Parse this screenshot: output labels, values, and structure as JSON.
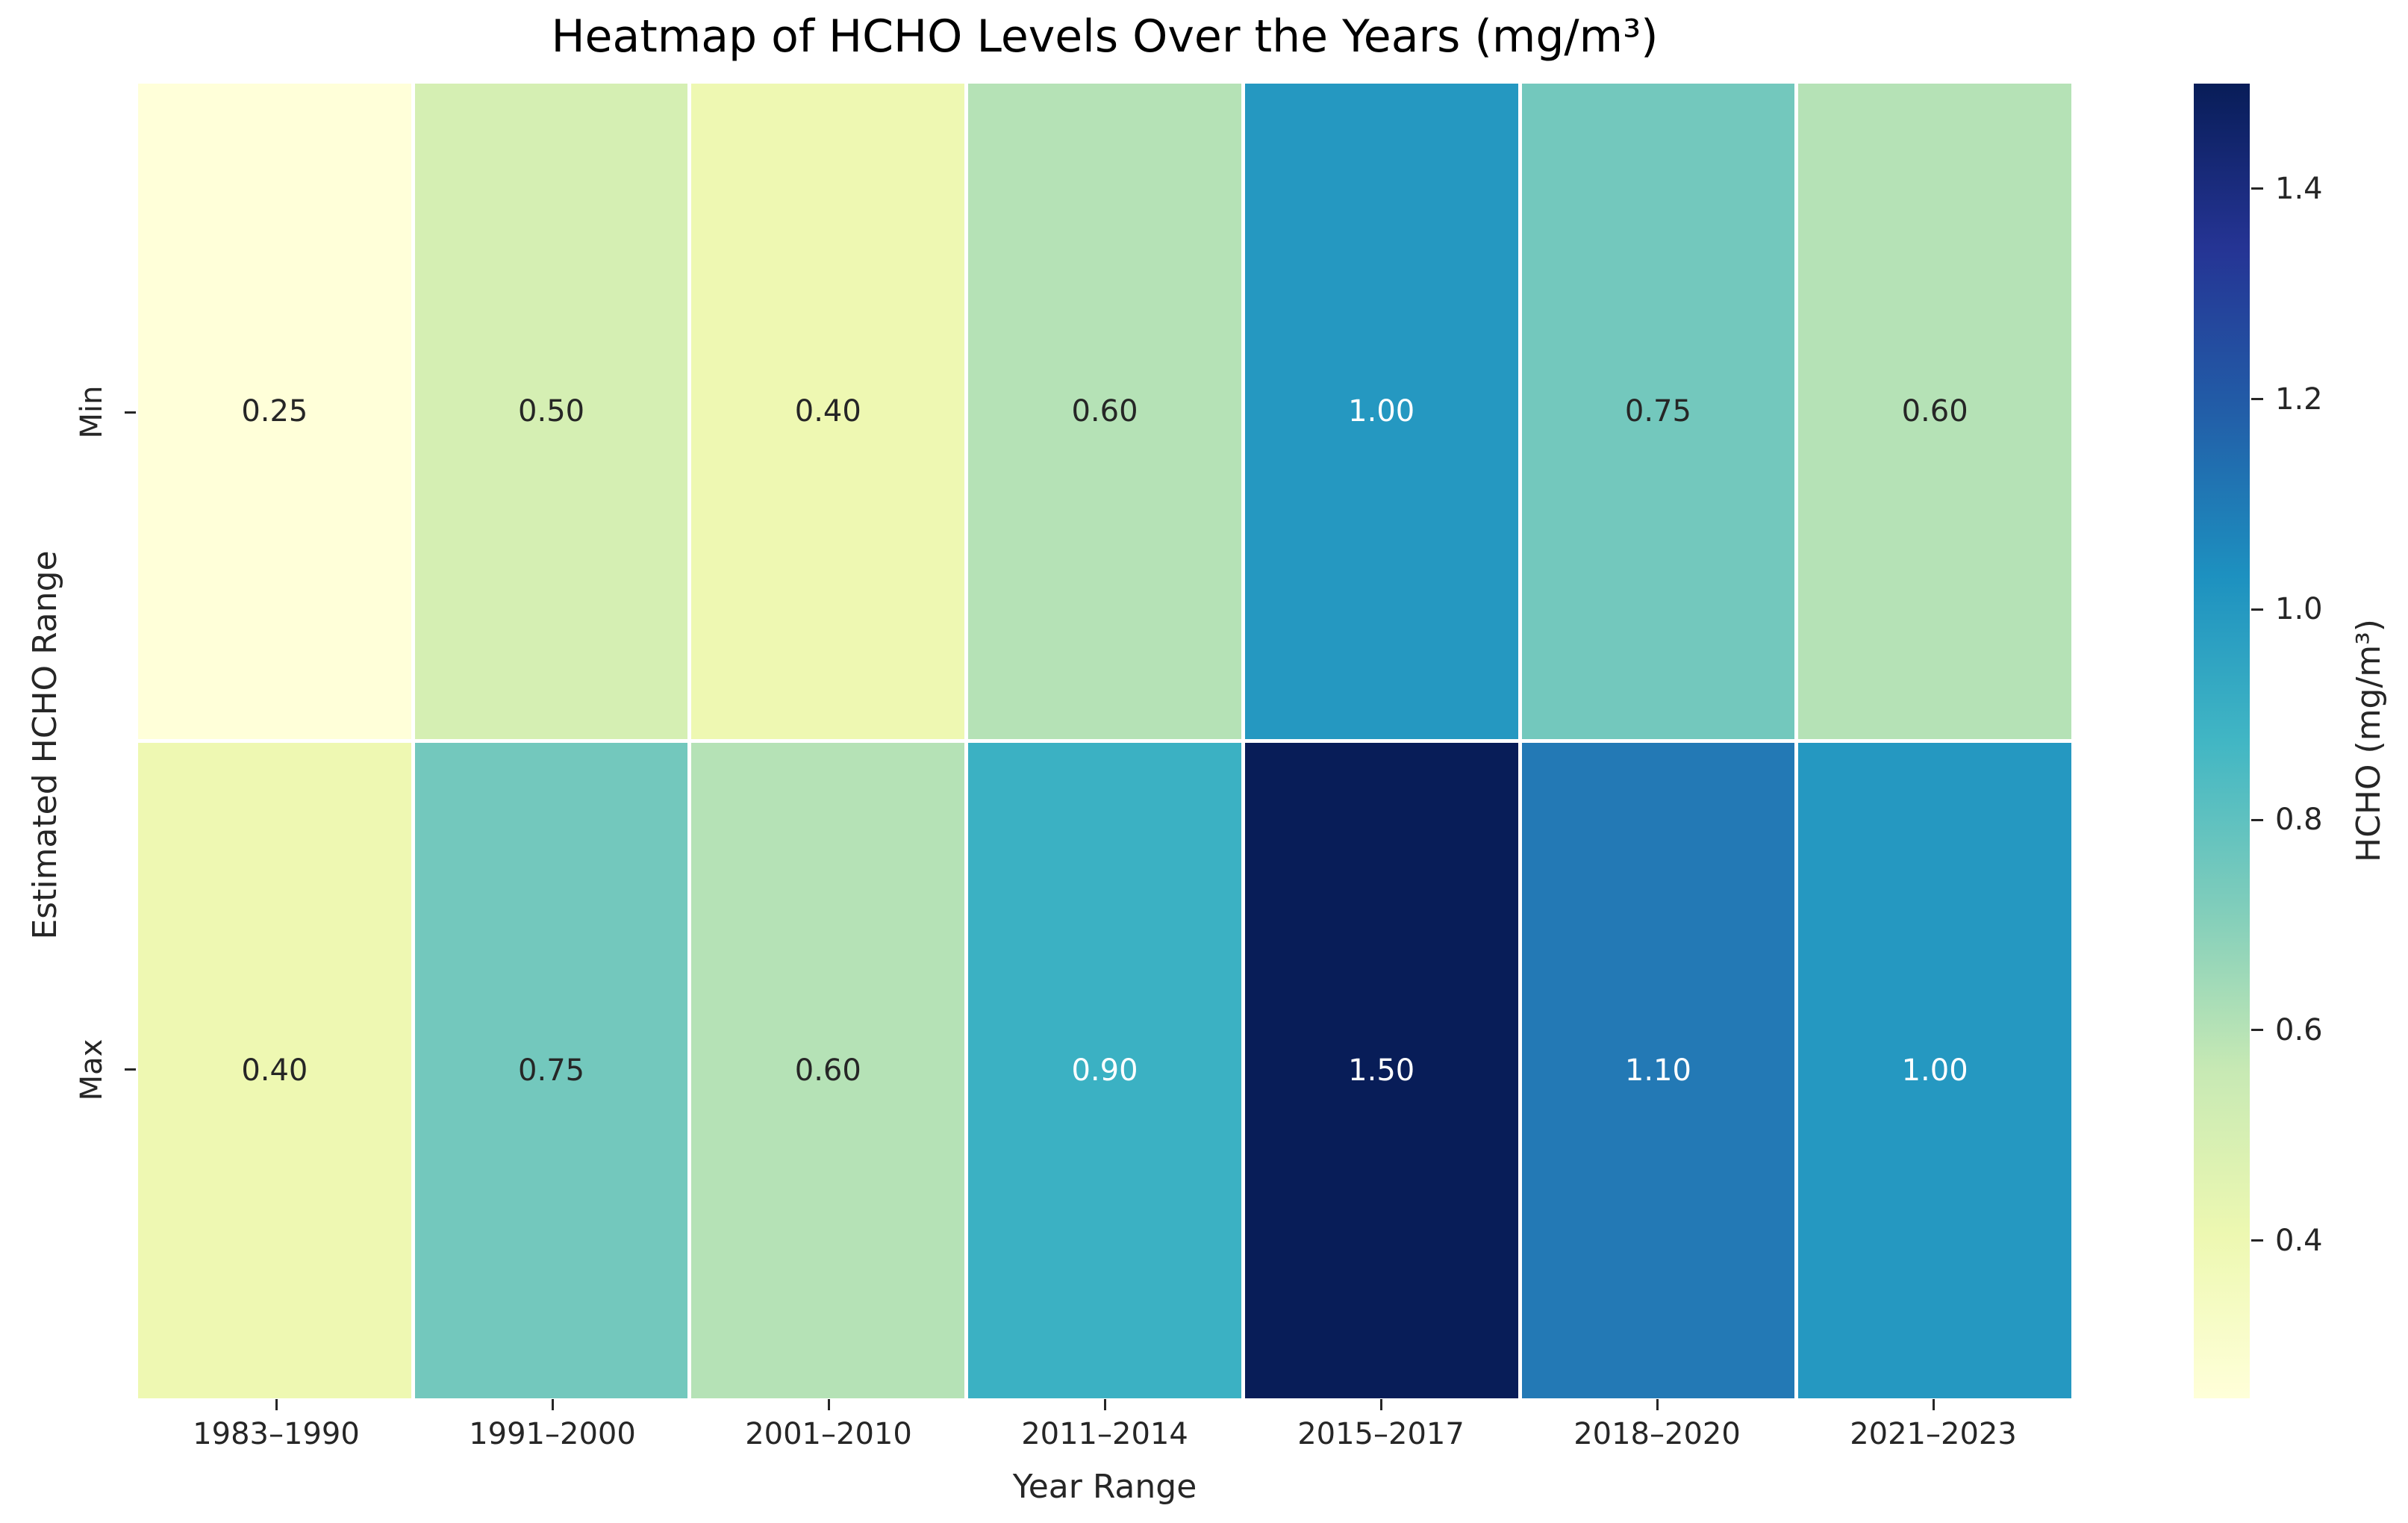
{
  "chart_data": {
    "type": "heatmap",
    "title": "Heatmap of HCHO Levels Over the Years (mg/m³)",
    "xlabel": "Year Range",
    "ylabel": "Estimated HCHO Range",
    "colorbar_label": "HCHO (mg/m³)",
    "colormap": "YlGnBu",
    "vmin": 0.25,
    "vmax": 1.5,
    "x_categories": [
      "1983–1990",
      "1991–2000",
      "2001–2010",
      "2011–2014",
      "2015–2017",
      "2018–2020",
      "2021–2023"
    ],
    "y_categories": [
      "Min",
      "Max"
    ],
    "series": [
      {
        "name": "Min",
        "values": [
          0.25,
          0.5,
          0.4,
          0.6,
          1.0,
          0.75,
          0.6
        ]
      },
      {
        "name": "Max",
        "values": [
          0.4,
          0.75,
          0.6,
          0.9,
          1.5,
          1.1,
          1.0
        ]
      }
    ],
    "cell_labels": [
      [
        "0.25",
        "0.50",
        "0.40",
        "0.60",
        "1.00",
        "0.75",
        "0.60"
      ],
      [
        "0.40",
        "0.75",
        "0.60",
        "0.90",
        "1.50",
        "1.10",
        "1.00"
      ]
    ],
    "cell_colors": [
      [
        "#ffffd9",
        "#d5efb3",
        "#eef8b2",
        "#b5e2b6",
        "#2598c1",
        "#73c8bd",
        "#b5e2b6"
      ],
      [
        "#eef8b2",
        "#73c8bd",
        "#b5e2b6",
        "#3bb1c3",
        "#081d58",
        "#2379b5",
        "#2598c1"
      ]
    ],
    "cell_text_colors": [
      [
        "#262626",
        "#262626",
        "#262626",
        "#262626",
        "#ffffff",
        "#262626",
        "#262626"
      ],
      [
        "#262626",
        "#262626",
        "#262626",
        "#ffffff",
        "#ffffff",
        "#ffffff",
        "#ffffff"
      ]
    ],
    "colorbar_ticks": [
      "1.4",
      "1.2",
      "1.0",
      "0.8",
      "0.6",
      "0.4"
    ],
    "colorbar_tick_pos_from_top_pct": [
      8,
      24,
      40,
      56,
      72,
      88
    ],
    "colorbar_gradient_stops_bottom_to_top": [
      {
        "pos": 0.0,
        "color": "#ffffd9"
      },
      {
        "pos": 0.125,
        "color": "#edf8b1"
      },
      {
        "pos": 0.25,
        "color": "#c7e9b4"
      },
      {
        "pos": 0.375,
        "color": "#7fcdbb"
      },
      {
        "pos": 0.5,
        "color": "#41b6c4"
      },
      {
        "pos": 0.625,
        "color": "#1d91c0"
      },
      {
        "pos": 0.75,
        "color": "#225ea8"
      },
      {
        "pos": 0.875,
        "color": "#253494"
      },
      {
        "pos": 1.0,
        "color": "#081d58"
      }
    ],
    "grid": false,
    "legend": "colorbar-right"
  }
}
